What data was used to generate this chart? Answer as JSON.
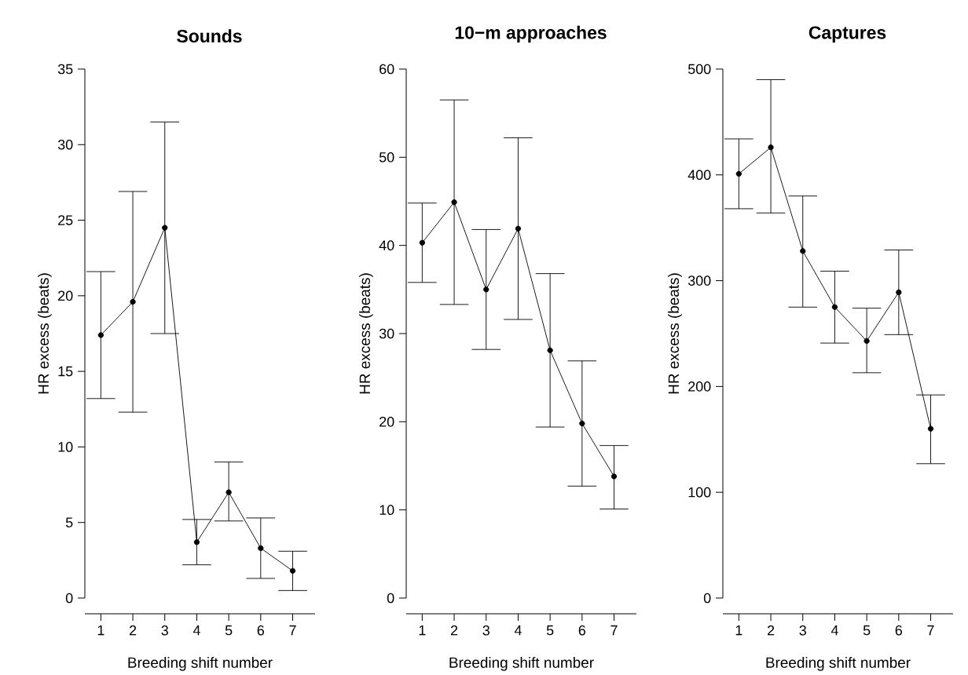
{
  "chart_data": [
    {
      "type": "line",
      "title": "Sounds",
      "xlabel": "Breeding shift number",
      "ylabel": "HR excess (beats)",
      "categories": [
        "1",
        "2",
        "3",
        "4",
        "5",
        "6",
        "7"
      ],
      "values": [
        17.4,
        19.6,
        24.5,
        3.7,
        7.0,
        3.3,
        1.8
      ],
      "errors": [
        [
          13.2,
          21.6
        ],
        [
          12.3,
          26.9
        ],
        [
          17.5,
          31.5
        ],
        [
          2.2,
          5.2
        ],
        [
          5.1,
          9.0
        ],
        [
          1.3,
          5.3
        ],
        [
          0.5,
          3.1
        ]
      ],
      "color": "#000000",
      "marker": "circle",
      "line_style": "solid",
      "ylim": [
        0,
        35
      ],
      "yticks": [
        0,
        5,
        10,
        15,
        20,
        25,
        30,
        35
      ]
    },
    {
      "type": "line",
      "title": "10−m approaches",
      "xlabel": "Breeding shift number",
      "ylabel": "HR excess (beats)",
      "categories": [
        "1",
        "2",
        "3",
        "4",
        "5",
        "6",
        "7"
      ],
      "values": [
        40.3,
        44.9,
        35.0,
        41.9,
        28.1,
        19.8,
        13.8
      ],
      "errors": [
        [
          35.8,
          44.8
        ],
        [
          33.3,
          56.5
        ],
        [
          28.2,
          41.8
        ],
        [
          31.6,
          52.2
        ],
        [
          19.4,
          36.8
        ],
        [
          12.7,
          26.9
        ],
        [
          10.1,
          17.3
        ]
      ],
      "color": "#000000",
      "marker": "circle",
      "line_style": "solid",
      "ylim": [
        0,
        60
      ],
      "yticks": [
        0,
        10,
        20,
        30,
        40,
        50,
        60
      ]
    },
    {
      "type": "line",
      "title": "Captures",
      "xlabel": "Breeding shift number",
      "ylabel": "HR excess (beats)",
      "categories": [
        "1",
        "2",
        "3",
        "4",
        "5",
        "6",
        "7"
      ],
      "values": [
        401,
        426,
        328,
        275,
        243,
        289,
        160
      ],
      "errors": [
        [
          368,
          434
        ],
        [
          364,
          490
        ],
        [
          275,
          380
        ],
        [
          241,
          309
        ],
        [
          213,
          274
        ],
        [
          249,
          329
        ],
        [
          127,
          192
        ]
      ],
      "color": "#000000",
      "marker": "circle",
      "line_style": "solid",
      "ylim": [
        0,
        500
      ],
      "yticks": [
        0,
        100,
        200,
        300,
        400,
        500
      ]
    }
  ]
}
